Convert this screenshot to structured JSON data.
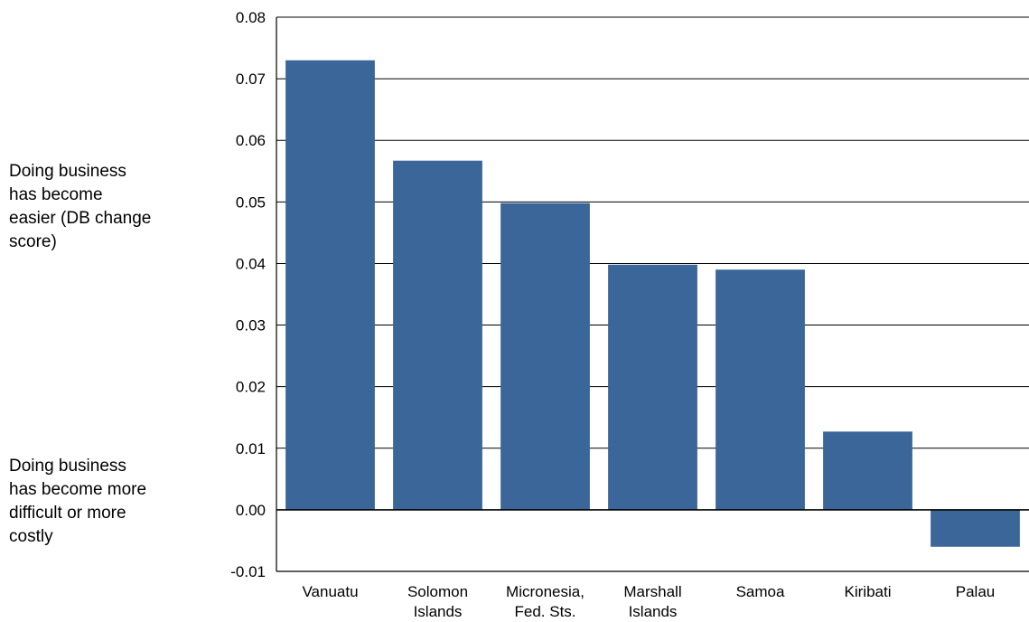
{
  "side_labels": {
    "easier": "Doing business has become easier (DB change score)",
    "harder": "Doing business has become more difficult or more costly"
  },
  "chart_data": {
    "type": "bar",
    "categories": [
      [
        "Vanuatu"
      ],
      [
        "Solomon",
        "Islands"
      ],
      [
        "Micronesia,",
        "Fed. Sts."
      ],
      [
        "Marshall",
        "Islands"
      ],
      [
        "Samoa"
      ],
      [
        "Kiribati"
      ],
      [
        "Palau"
      ]
    ],
    "values": [
      0.073,
      0.0567,
      0.0498,
      0.0398,
      0.039,
      0.0127,
      -0.006
    ],
    "ylim": [
      -0.01,
      0.08
    ],
    "yticks": [
      "0.08",
      "0.07",
      "0.06",
      "0.05",
      "0.04",
      "0.03",
      "0.02",
      "0.01",
      "0.00",
      "-0.01"
    ],
    "ytick_values": [
      0.08,
      0.07,
      0.06,
      0.05,
      0.04,
      0.03,
      0.02,
      0.01,
      0.0,
      -0.01
    ],
    "grid": true,
    "bar_color": "#3a6699"
  }
}
